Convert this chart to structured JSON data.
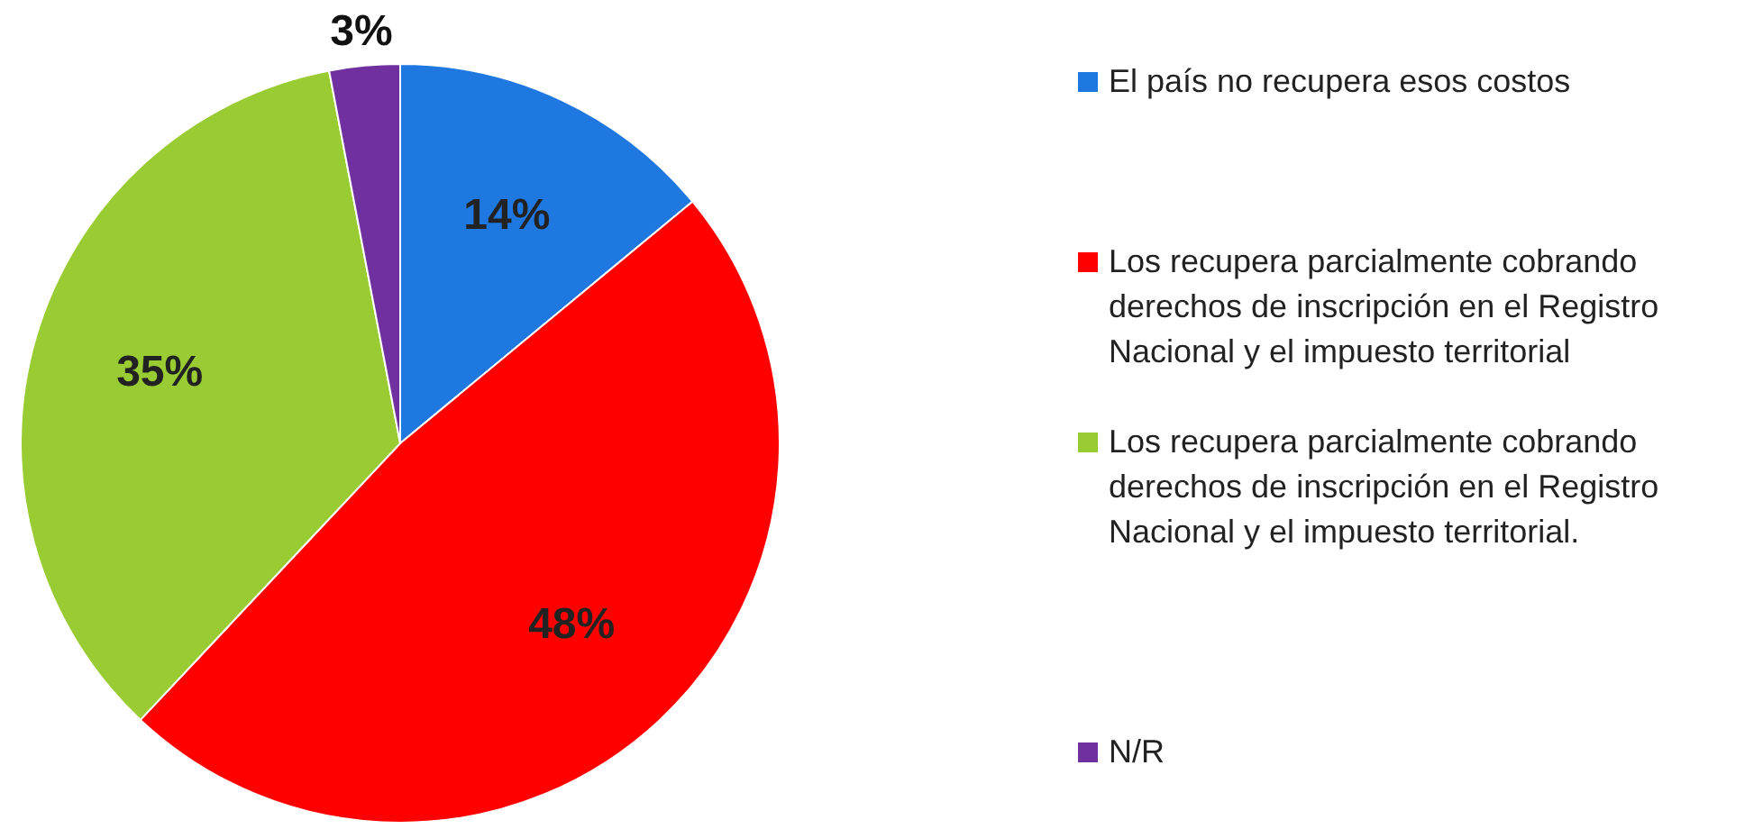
{
  "chart_data": {
    "type": "pie",
    "categories": [
      "El país no recupera esos costos",
      "Los recupera parcialmente cobrando derechos de inscripción en el Registro Nacional y el impuesto territorial",
      "Los recupera parcialmente cobrando derechos de inscripción en el Registro Nacional y el impuesto territorial.",
      "N/R"
    ],
    "values": [
      14,
      48,
      35,
      3
    ],
    "value_labels": [
      "14%",
      "48%",
      "35%",
      "3%"
    ],
    "colors": [
      "#1f78e0",
      "#ff0000",
      "#99cc33",
      "#7030a0"
    ],
    "legend": "right"
  }
}
